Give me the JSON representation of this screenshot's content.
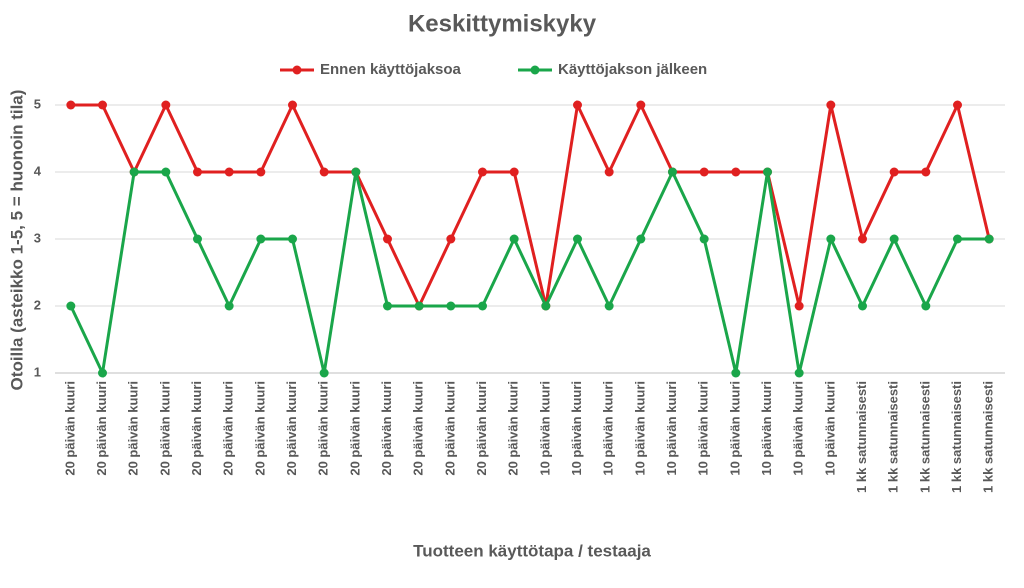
{
  "chart_data": {
    "type": "line",
    "title": "Keskittymiskyky",
    "x_label": "Tuotteen käyttötapa / testaaja",
    "y_label": "Otoilla (asteikko 1-5, 5 = huonoin tila)",
    "categories": [
      "20 päivän kuuri",
      "20 päivän kuuri",
      "20 päivän kuuri",
      "20 päivän kuuri",
      "20 päivän kuuri",
      "20 päivän kuuri",
      "20 päivän kuuri",
      "20 päivän kuuri",
      "20 päivän kuuri",
      "20 päivän kuuri",
      "20 päivän kuuri",
      "20 päivän kuuri",
      "20 päivän kuuri",
      "20 päivän kuuri",
      "20 päivän kuuri",
      "10 päivän kuuri",
      "10 päivän kuuri",
      "10 päivän kuuri",
      "10 päivän kuuri",
      "10 päivän kuuri",
      "10 päivän kuuri",
      "10 päivän kuuri",
      "10 päivän kuuri",
      "10 päivän kuuri",
      "10 päivän kuuri",
      "1 kk satunnaisesti",
      "1 kk satunnaisesti",
      "1 kk satunnaisesti",
      "1 kk satunnaisesti",
      "1 kk satunnaisesti"
    ],
    "series": [
      {
        "name": "Ennen käyttöjaksoa",
        "color": "#e02020",
        "values": [
          5,
          5,
          4,
          5,
          4,
          4,
          4,
          5,
          4,
          4,
          3,
          2,
          3,
          4,
          4,
          2,
          5,
          4,
          5,
          4,
          4,
          4,
          4,
          2,
          5,
          3,
          4,
          4,
          5,
          3
        ]
      },
      {
        "name": "Käyttöjakson jälkeen",
        "color": "#1aa64a",
        "values": [
          2,
          1,
          4,
          4,
          3,
          2,
          3,
          3,
          1,
          4,
          2,
          2,
          2,
          2,
          3,
          2,
          3,
          2,
          3,
          4,
          3,
          1,
          4,
          1,
          3,
          2,
          3,
          2,
          3,
          3
        ]
      }
    ],
    "ylim": [
      1,
      5
    ],
    "yticks": [
      1,
      2,
      3,
      4,
      5
    ],
    "grid": true,
    "legend": "top"
  }
}
